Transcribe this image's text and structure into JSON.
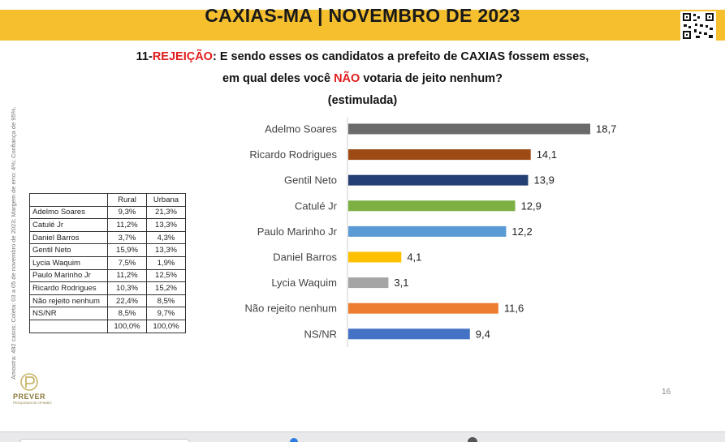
{
  "header": {
    "title": "CAXIAS-MA | NOVEMBRO DE 2023"
  },
  "question": {
    "line1_prefix": "11-",
    "line1_highlight": "REJEIÇÃO",
    "line1_rest": ": E sendo esses os candidatos a prefeito de CAXIAS fossem esses,",
    "line2_prefix": "em qual deles você ",
    "line2_highlight": "NÃO",
    "line2_rest": " votaria de jeito nenhum?",
    "line3": "(estimulada)"
  },
  "side_note": "Amostra: 482 casos; Coleta: 03 a 05 de novembro de 2023; Margem de erro: 4%; Confiança de 95%.",
  "table": {
    "headers": [
      "",
      "Rural",
      "Urbana"
    ],
    "rows": [
      [
        "Adelmo Soares",
        "9,3%",
        "21,3%"
      ],
      [
        "Catulé Jr",
        "11,2%",
        "13,3%"
      ],
      [
        "Daniel Barros",
        "3,7%",
        "4,3%"
      ],
      [
        "Gentil Neto",
        "15,9%",
        "13,3%"
      ],
      [
        "Lycia Waquim",
        "7,5%",
        "1,9%"
      ],
      [
        "Paulo Marinho Jr",
        "11,2%",
        "12,5%"
      ],
      [
        "Ricardo Rodrigues",
        "10,3%",
        "15,2%"
      ],
      [
        "Não rejeito nenhum",
        "22,4%",
        "8,5%"
      ],
      [
        "NS/NR",
        "8,5%",
        "9,7%"
      ],
      [
        "",
        "100,0%",
        "100,0%"
      ]
    ]
  },
  "logo": {
    "name": "PREVER",
    "tagline": "PESQUISAS DE OPINIÃO"
  },
  "page_number": "16",
  "chart_data": {
    "type": "bar",
    "orientation": "horizontal",
    "categories": [
      "Adelmo Soares",
      "Ricardo Rodrigues",
      "Gentil Neto",
      "Catulé Jr",
      "Paulo Marinho Jr",
      "Daniel Barros",
      "Lycia Waquim",
      "Não rejeito nenhum",
      "NS/NR"
    ],
    "values": [
      18.7,
      14.1,
      13.9,
      12.9,
      12.2,
      4.1,
      3.1,
      11.6,
      9.4
    ],
    "value_labels": [
      "18,7",
      "14,1",
      "13,9",
      "12,9",
      "12,2",
      "4,1",
      "3,1",
      "11,6",
      "9,4"
    ],
    "colors": [
      "#6b6b6b",
      "#9e4a14",
      "#243f73",
      "#7db043",
      "#5b9bd5",
      "#ffc000",
      "#a5a5a5",
      "#ed7d31",
      "#4472c4"
    ],
    "xlim": [
      0,
      20
    ],
    "grid": false,
    "legend": "none"
  }
}
